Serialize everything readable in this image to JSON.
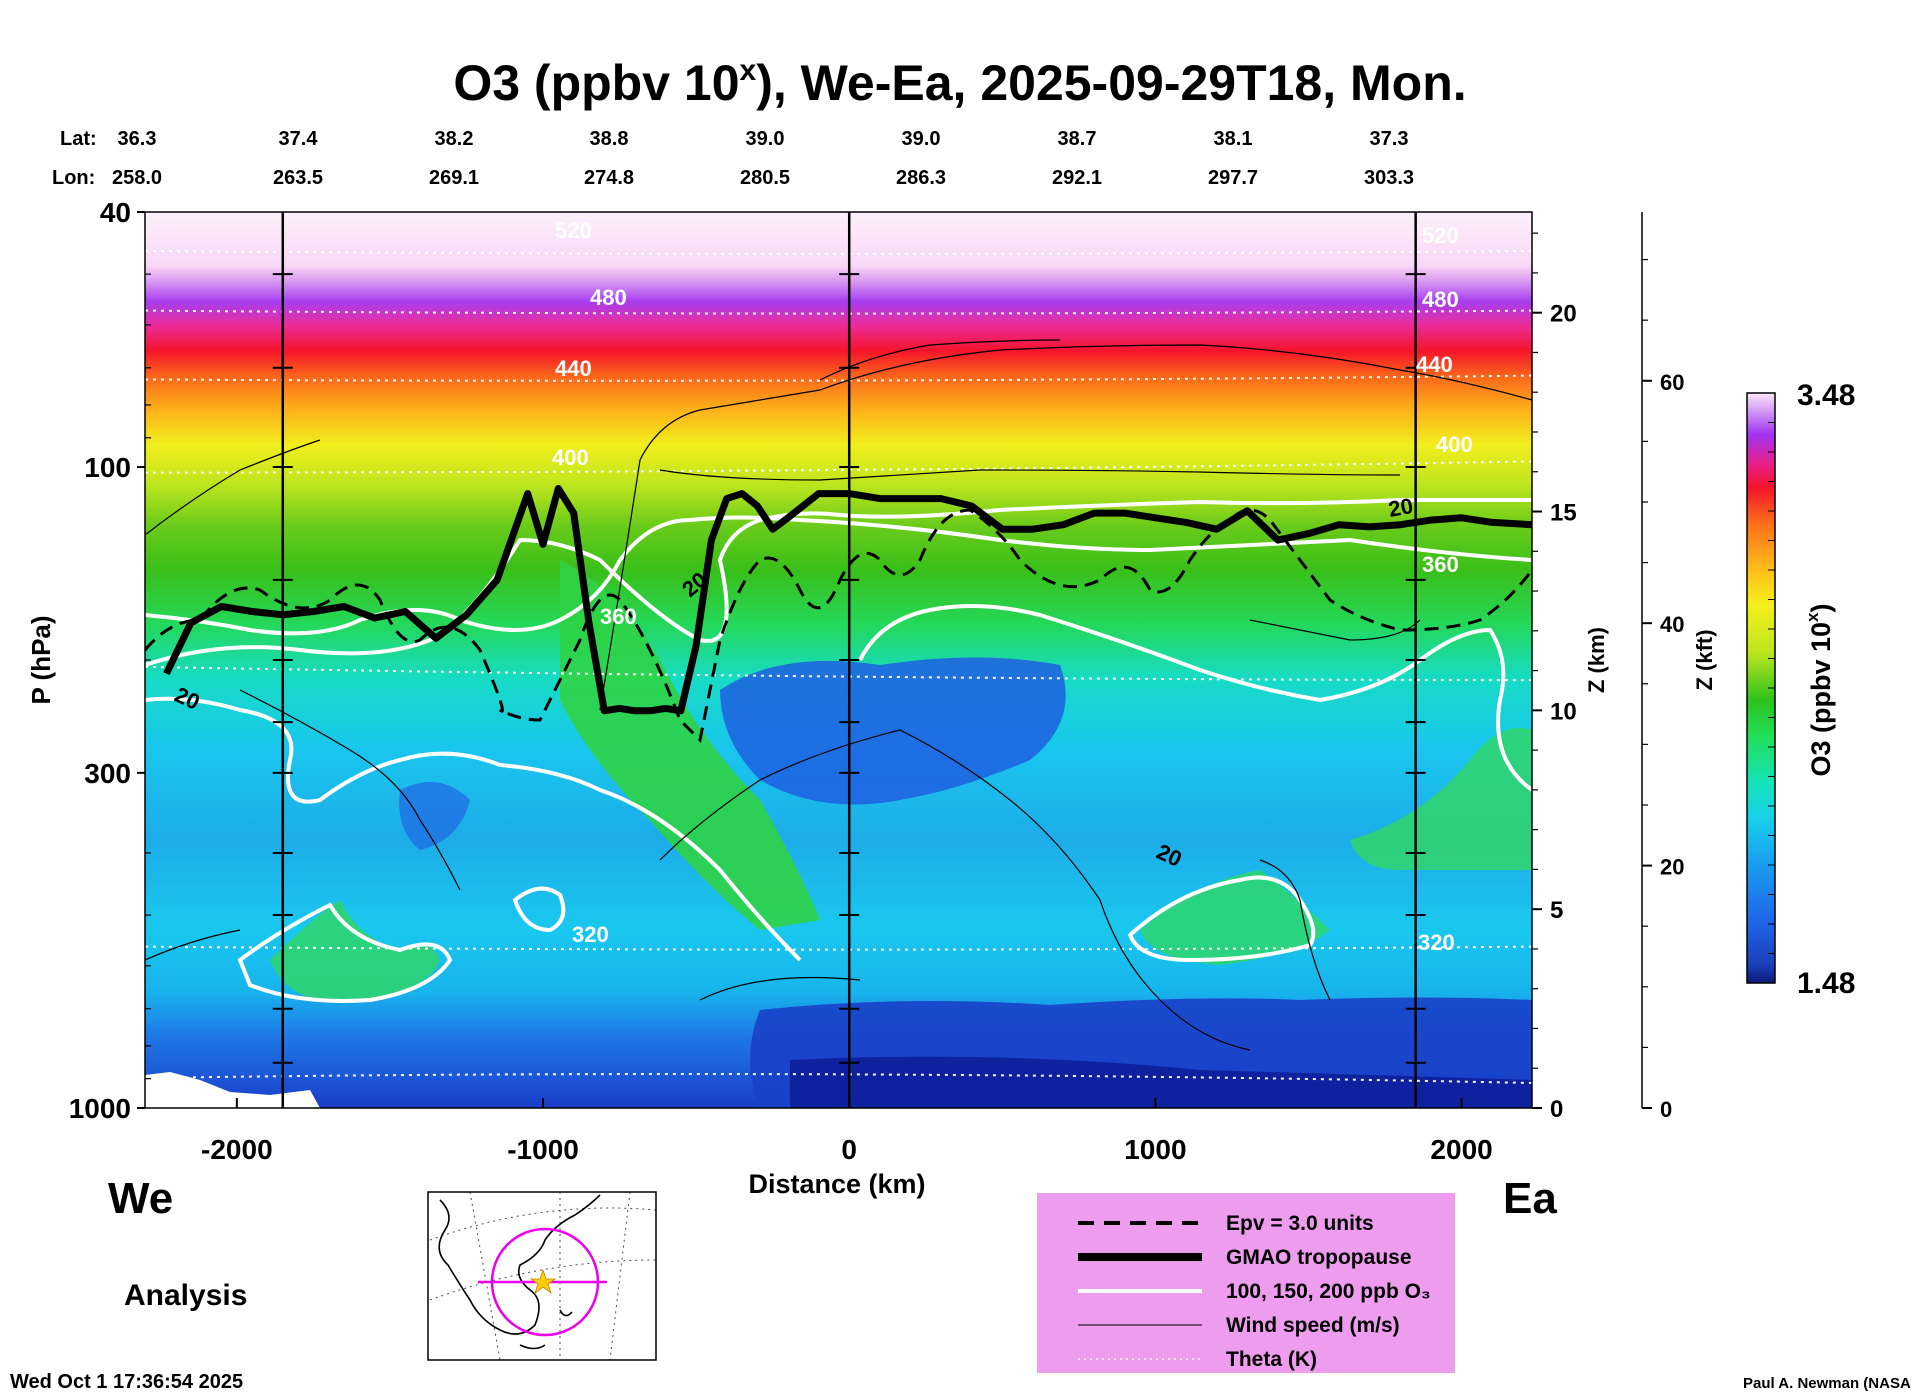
{
  "title": {
    "base": "O3 (ppbv 10",
    "superscript": "x",
    "rest": "), We-Ea, 2025-09-29T18, Mon."
  },
  "latlon": {
    "lat_label": "Lat:",
    "lon_label": "Lon:",
    "lat": [
      "36.3",
      "37.4",
      "38.2",
      "38.8",
      "39.0",
      "39.0",
      "38.7",
      "38.1",
      "37.3"
    ],
    "lon": [
      "258.0",
      "263.5",
      "269.1",
      "274.8",
      "280.5",
      "286.3",
      "292.1",
      "297.7",
      "303.3"
    ]
  },
  "labels": {
    "west": "We",
    "east": "Ea",
    "analysis": "Analysis",
    "timestamp": "Wed Oct  1 17:36:54 2025",
    "credit": "Paul A. Newman (NASA"
  },
  "colorbar": {
    "label_base": "O3 (ppbv 10",
    "label_sup": "x",
    "label_close": ")",
    "max": "3.48",
    "min": "1.48"
  },
  "legend": [
    {
      "style": "dashed",
      "label": "Epv = 3.0 units"
    },
    {
      "style": "thick",
      "label": "GMAO tropopause"
    },
    {
      "style": "white",
      "label": "100, 150, 200 ppb O₃"
    },
    {
      "style": "thin",
      "label": "Wind speed (m/s)"
    },
    {
      "style": "dotted",
      "label": "Theta (K)"
    }
  ],
  "colors": {
    "legend_bg": "#ee9cee",
    "inset_circle": "#ee00ee",
    "inset_star": "#ffcc00"
  },
  "chart_data": {
    "type": "heatmap",
    "xlabel": "Distance (km)",
    "ylabel": "P (hPa)",
    "xlim": [
      -2300,
      2230
    ],
    "ylim": [
      1000,
      40
    ],
    "x_ticks": [
      -2000,
      -1000,
      0,
      1000,
      2000
    ],
    "x_tick_labels": [
      "-2000",
      "-1000",
      "0",
      "1000",
      "2000"
    ],
    "p_ticks": [
      40,
      100,
      300,
      1000
    ],
    "p_tick_labels": [
      "40",
      "100",
      "300",
      "1000"
    ],
    "z_km_label": "Z (km)",
    "z_km_ticks": [
      0,
      5,
      10,
      15,
      20
    ],
    "z_km_tick_labels": [
      "0",
      "5",
      "10",
      "15",
      "20"
    ],
    "z_kft_label": "Z (kft)",
    "z_kft_ticks": [
      0,
      20,
      40,
      60
    ],
    "z_kft_tick_labels": [
      "0",
      "20",
      "40",
      "60"
    ],
    "vertical_markers_km": [
      -1850,
      0,
      1850
    ],
    "colorbar_range": [
      1.48,
      3.48
    ],
    "theta_levels_K": [
      320,
      360,
      400,
      440,
      480,
      520
    ],
    "theta_pressure_hPa": [
      {
        "theta": 320,
        "p": [
          560,
          560
        ]
      },
      {
        "theta": 360,
        "p": [
          205,
          215
        ]
      },
      {
        "theta": 400,
        "p": [
          102,
          98
        ]
      },
      {
        "theta": 440,
        "p": [
          73,
          72
        ]
      },
      {
        "theta": 480,
        "p": [
          57,
          57
        ]
      },
      {
        "theta": 520,
        "p": [
          46,
          46
        ]
      }
    ],
    "tropopause": {
      "x": [
        -2230,
        -2150,
        -2050,
        -1950,
        -1850,
        -1750,
        -1650,
        -1550,
        -1450,
        -1350,
        -1250,
        -1150,
        -1050,
        -1000,
        -950,
        -900,
        -850,
        -800,
        -750,
        -700,
        -650,
        -600,
        -550,
        -500,
        -450,
        -400,
        -350,
        -300,
        -250,
        -200,
        -100,
        0,
        100,
        200,
        300,
        400,
        500,
        550,
        600,
        700,
        800,
        900,
        1000,
        1100,
        1200,
        1300,
        1400,
        1500,
        1600,
        1700,
        1800,
        1900,
        2000,
        2100,
        2230
      ],
      "p": [
        210,
        175,
        165,
        168,
        170,
        168,
        165,
        172,
        168,
        185,
        170,
        150,
        110,
        132,
        108,
        118,
        175,
        240,
        238,
        240,
        240,
        238,
        240,
        190,
        130,
        112,
        110,
        115,
        125,
        120,
        110,
        110,
        112,
        112,
        112,
        115,
        125,
        125,
        125,
        123,
        118,
        118,
        120,
        122,
        125,
        117,
        130,
        127,
        123,
        124,
        123,
        121,
        120,
        122,
        123
      ]
    },
    "contour_labels": {
      "theta": [
        "520",
        "480",
        "440",
        "400",
        "360",
        "320",
        "520",
        "480",
        "440",
        "400",
        "360",
        "320"
      ],
      "wind": [
        "20",
        "20",
        "20",
        "20"
      ]
    }
  }
}
